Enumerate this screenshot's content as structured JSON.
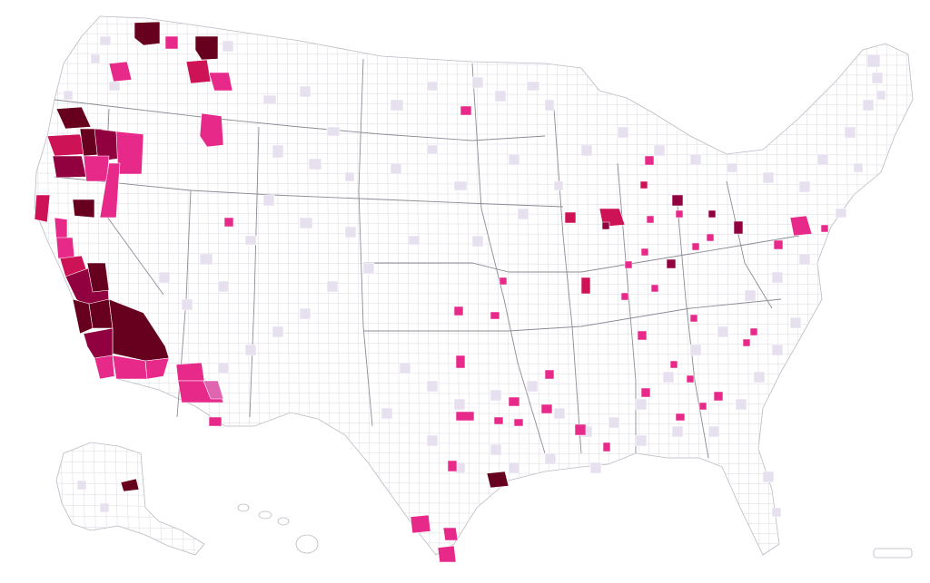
{
  "map": {
    "kind": "US county choropleth",
    "palette": {
      "level_0": "#ffffff",
      "level_1": "#e7e1ef",
      "level_2": "#df65b0",
      "level_3": "#e7298a",
      "level_4": "#ce1256",
      "level_5": "#91003f",
      "level_6": "#67001f",
      "border": "#b9b9c4",
      "state_border": "#8c8c96"
    },
    "legend": null,
    "annotations": []
  }
}
